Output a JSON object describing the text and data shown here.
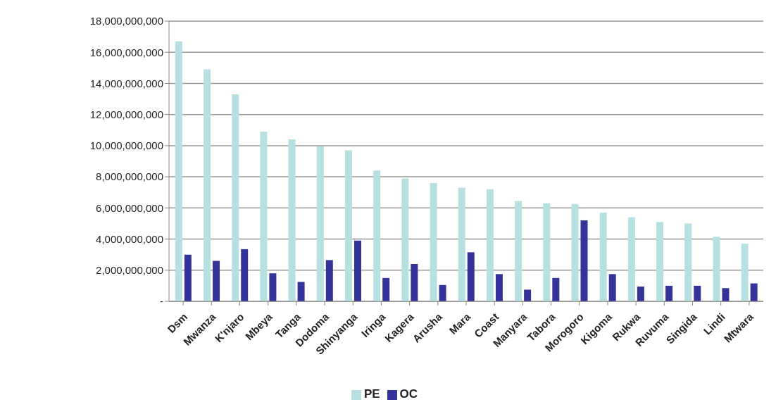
{
  "chart_data": {
    "type": "bar",
    "categories": [
      "Dsm",
      "Mwanza",
      "K'njaro",
      "Mbeya",
      "Tanga",
      "Dodoma",
      "Shinyanga",
      "Iringa",
      "Kagera",
      "Arusha",
      "Mara",
      "Coast",
      "Manyara",
      "Tabora",
      "Morogoro",
      "Kigoma",
      "Rukwa",
      "Ruvuma",
      "Singida",
      "Lindi",
      "Mtwara"
    ],
    "series": [
      {
        "name": "PE",
        "color": "#b7e0e3",
        "values": [
          16700000000,
          14900000000,
          13300000000,
          10900000000,
          10400000000,
          9950000000,
          9700000000,
          8400000000,
          7900000000,
          7600000000,
          7300000000,
          7200000000,
          6450000000,
          6300000000,
          6250000000,
          5700000000,
          5400000000,
          5100000000,
          5000000000,
          4150000000,
          3700000000
        ]
      },
      {
        "name": "OC",
        "color": "#333399",
        "values": [
          3000000000,
          2600000000,
          3350000000,
          1800000000,
          1250000000,
          2650000000,
          3900000000,
          1500000000,
          2400000000,
          1050000000,
          3150000000,
          1750000000,
          750000000,
          1500000000,
          5200000000,
          1750000000,
          950000000,
          1000000000,
          1000000000,
          850000000,
          1150000000
        ]
      }
    ],
    "ylim": [
      0,
      18000000000
    ],
    "yticks": [
      {
        "value": 0,
        "label": "-"
      },
      {
        "value": 2000000000,
        "label": "2,000,000,000"
      },
      {
        "value": 4000000000,
        "label": "4,000,000,000"
      },
      {
        "value": 6000000000,
        "label": "6,000,000,000"
      },
      {
        "value": 8000000000,
        "label": "8,000,000,000"
      },
      {
        "value": 10000000000,
        "label": "10,000,000,000"
      },
      {
        "value": 12000000000,
        "label": "12,000,000,000"
      },
      {
        "value": 14000000000,
        "label": "14,000,000,000"
      },
      {
        "value": 16000000000,
        "label": "16,000,000,000"
      },
      {
        "value": 18000000000,
        "label": "18,000,000,000"
      }
    ],
    "grid": "y",
    "legend": "bottom"
  }
}
